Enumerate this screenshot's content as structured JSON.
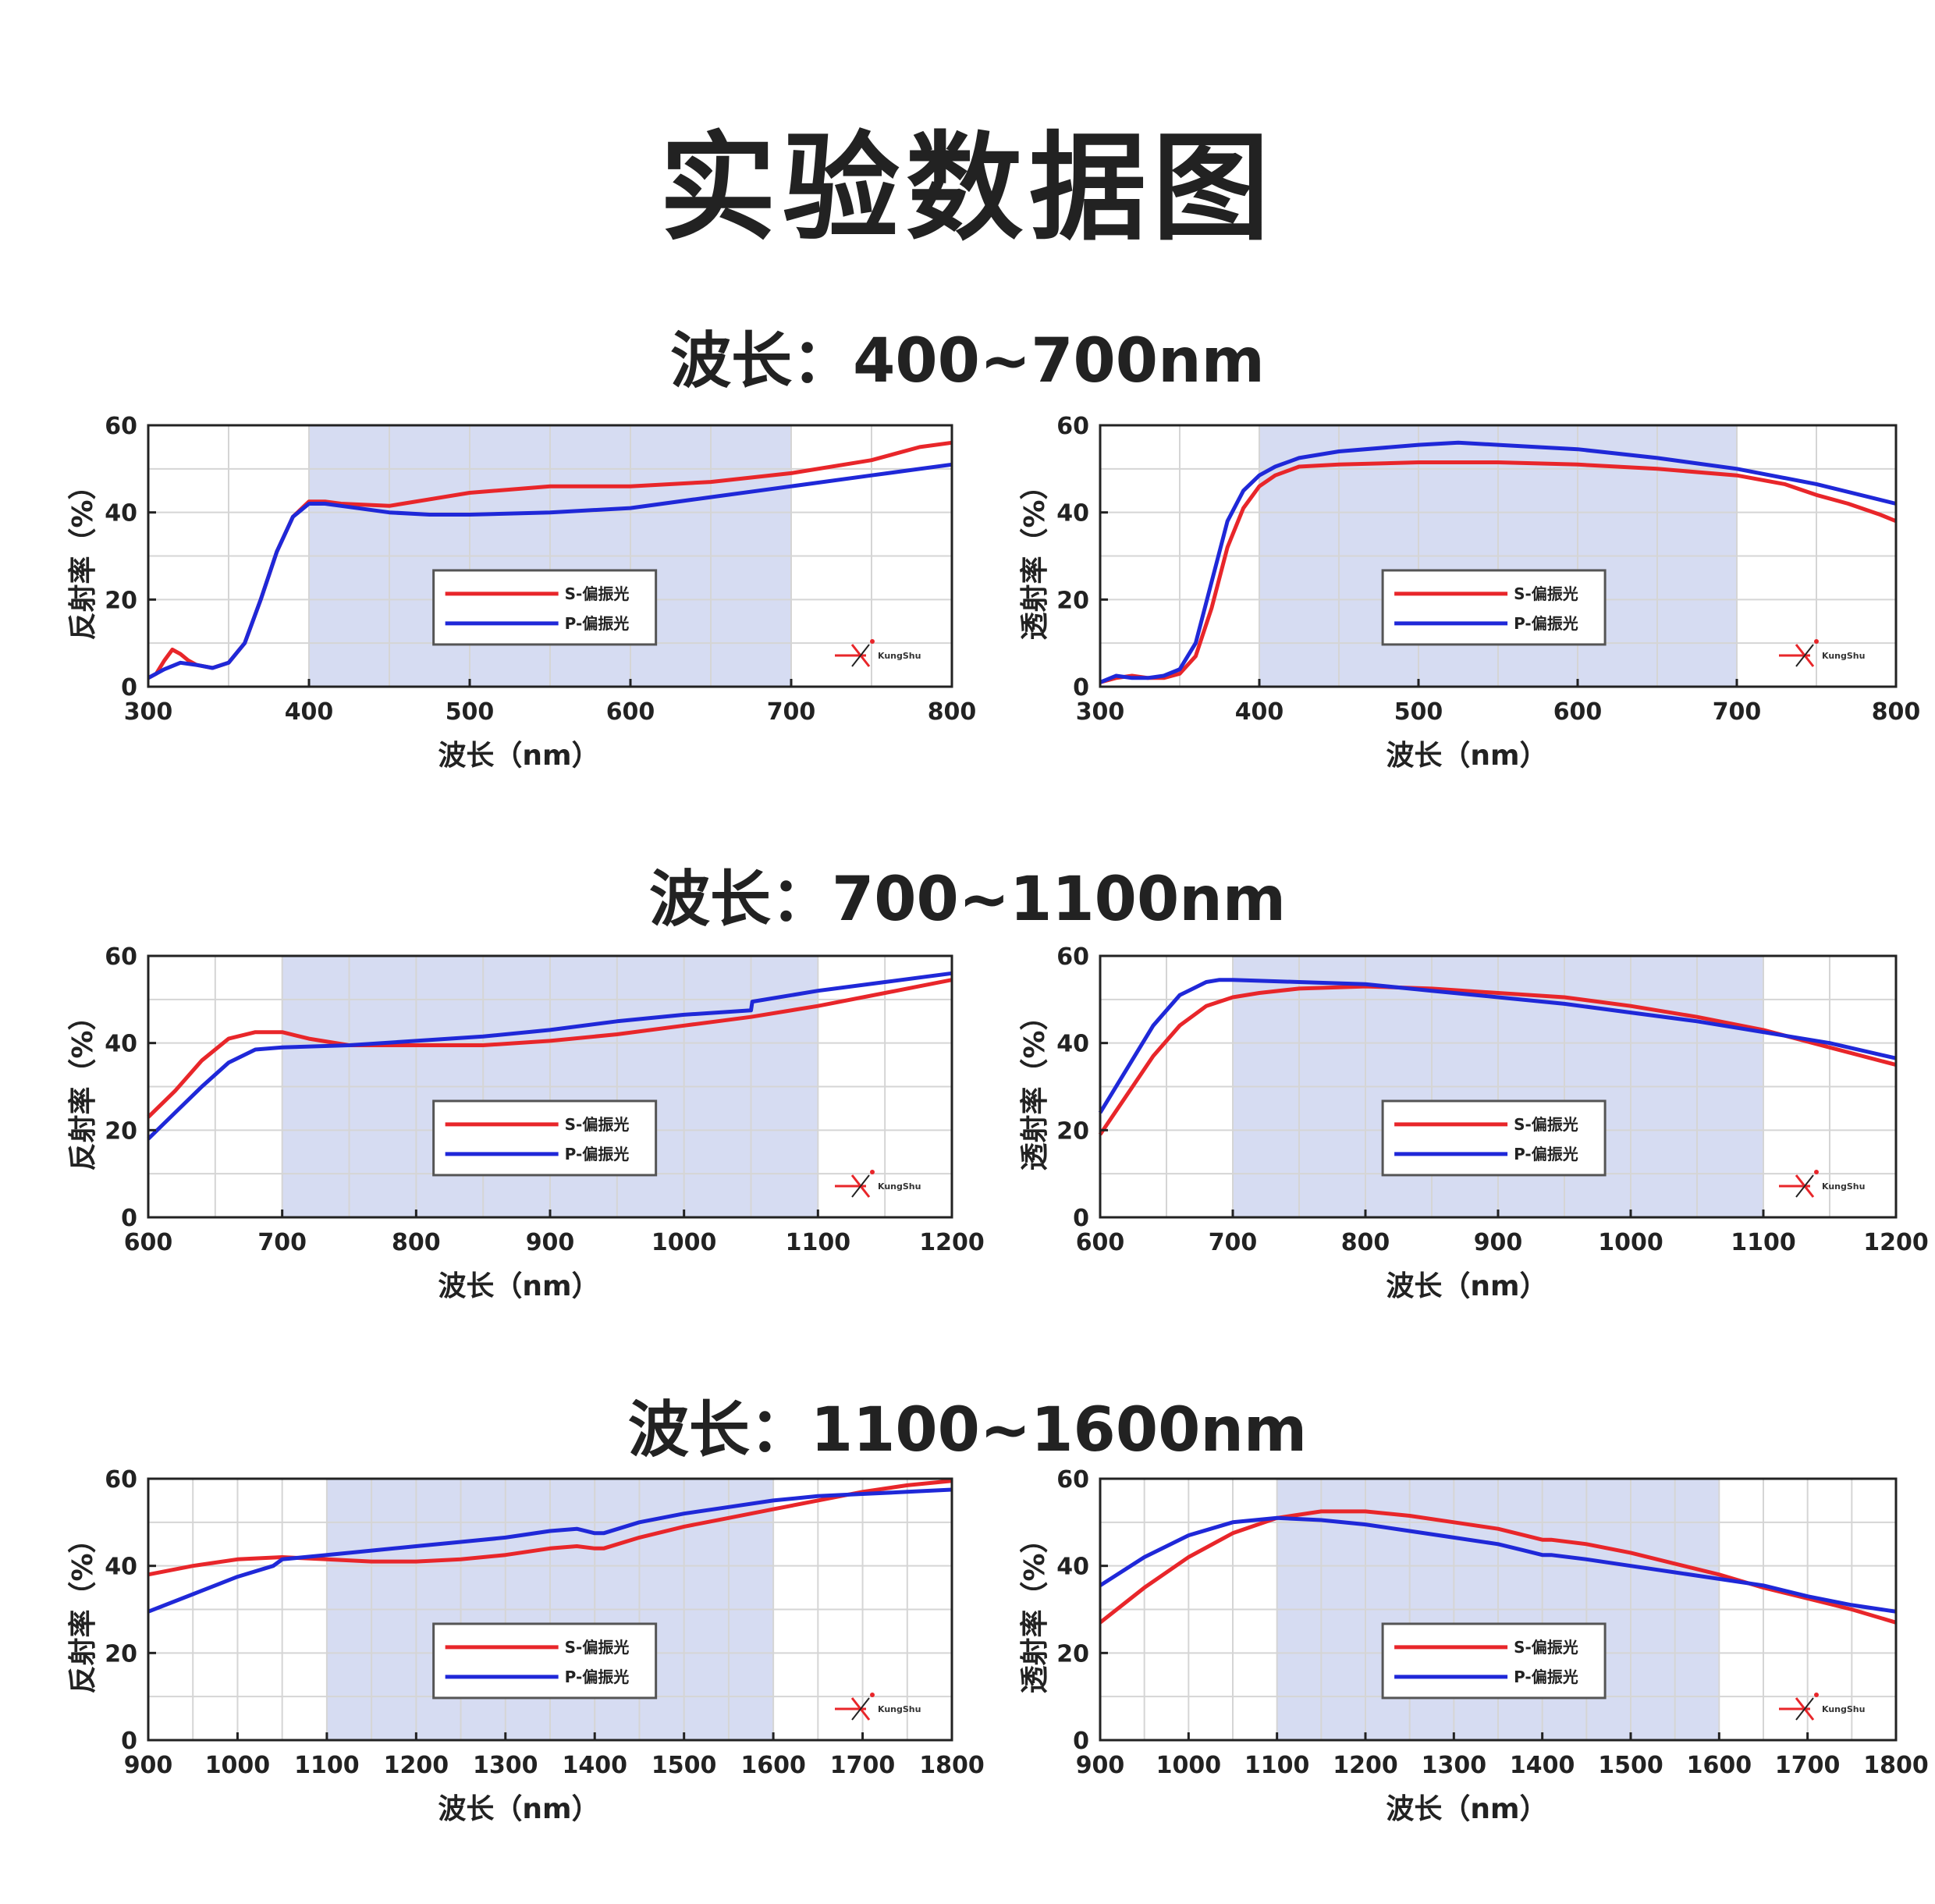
{
  "title": "实验数据图",
  "sections": [
    {
      "title": "波长：400~700nm"
    },
    {
      "title": "波长：700~1100nm"
    },
    {
      "title": "波长：1100~1600nm"
    }
  ],
  "colors": {
    "s": "#e8262a",
    "p": "#1f28d8",
    "band": "#d6dcf2",
    "grid": "#d5d5d5"
  },
  "legend": {
    "s": "S-偏振光",
    "p": "P-偏振光"
  },
  "logo": {
    "text": "KungShu",
    "icon": "kungshu-laser-logo-icon"
  },
  "chart_data": [
    {
      "type": "line",
      "section": 0,
      "side": "left",
      "ylabel": "反射率（%）",
      "xlabel": "波长（nm）",
      "xlim": [
        300,
        800
      ],
      "ylim": [
        0,
        60
      ],
      "xticks": [
        "300",
        "400",
        "500",
        "600",
        "700",
        "800"
      ],
      "yticks": [
        "0",
        "20",
        "40",
        "60"
      ],
      "band": [
        400,
        700
      ],
      "series": [
        {
          "name": "S-偏振光",
          "color": "#e8262a",
          "x": [
            300,
            305,
            310,
            315,
            320,
            325,
            330,
            340,
            350,
            360,
            370,
            380,
            390,
            400,
            410,
            420,
            450,
            500,
            550,
            600,
            650,
            700,
            750,
            780,
            800
          ],
          "y": [
            2,
            3,
            6,
            8.5,
            7.5,
            6,
            5,
            4.3,
            5.5,
            10,
            20,
            31,
            39,
            42.5,
            42.5,
            42,
            41.5,
            44.5,
            46,
            46,
            47,
            49,
            52,
            55,
            56
          ]
        },
        {
          "name": "P-偏振光",
          "color": "#1f28d8",
          "x": [
            300,
            310,
            320,
            330,
            340,
            350,
            360,
            370,
            380,
            390,
            400,
            410,
            420,
            450,
            475,
            500,
            550,
            600,
            650,
            700,
            750,
            800
          ],
          "y": [
            2,
            4,
            5.5,
            5,
            4.3,
            5.5,
            10,
            20,
            31,
            39,
            42,
            42,
            41.5,
            40,
            39.5,
            39.5,
            40,
            41,
            43.5,
            46,
            48.5,
            51
          ]
        }
      ]
    },
    {
      "type": "line",
      "section": 0,
      "side": "right",
      "ylabel": "透射率（%）",
      "xlabel": "波长（nm）",
      "xlim": [
        300,
        800
      ],
      "ylim": [
        0,
        60
      ],
      "xticks": [
        "300",
        "400",
        "500",
        "600",
        "700",
        "800"
      ],
      "yticks": [
        "0",
        "20",
        "40",
        "60"
      ],
      "band": [
        400,
        700
      ],
      "series": [
        {
          "name": "S-偏振光",
          "color": "#e8262a",
          "x": [
            300,
            310,
            320,
            330,
            340,
            350,
            360,
            370,
            380,
            390,
            400,
            410,
            425,
            450,
            500,
            550,
            600,
            650,
            700,
            730,
            750,
            770,
            790,
            800
          ],
          "y": [
            1,
            2,
            2.5,
            2,
            2,
            3,
            7,
            18,
            32,
            41,
            46,
            48.5,
            50.5,
            51,
            51.5,
            51.5,
            51,
            50,
            48.5,
            46.5,
            44,
            42,
            39.5,
            38
          ]
        },
        {
          "name": "P-偏振光",
          "color": "#1f28d8",
          "x": [
            300,
            310,
            320,
            330,
            340,
            350,
            360,
            370,
            380,
            390,
            400,
            410,
            425,
            450,
            500,
            525,
            550,
            600,
            650,
            700,
            750,
            800
          ],
          "y": [
            1,
            2.5,
            2,
            2,
            2.5,
            4,
            10,
            24,
            38,
            45,
            48.5,
            50.5,
            52.5,
            54,
            55.5,
            56,
            55.5,
            54.5,
            52.5,
            50,
            46.5,
            42
          ]
        }
      ]
    },
    {
      "type": "line",
      "section": 1,
      "side": "left",
      "ylabel": "反射率（%）",
      "xlabel": "波长（nm）",
      "xlim": [
        600,
        1200
      ],
      "ylim": [
        0,
        60
      ],
      "xticks": [
        "600",
        "700",
        "800",
        "900",
        "1000",
        "1100",
        "1200"
      ],
      "yticks": [
        "0",
        "20",
        "40",
        "60"
      ],
      "band": [
        700,
        1100
      ],
      "series": [
        {
          "name": "S-偏振光",
          "color": "#e8262a",
          "x": [
            600,
            620,
            640,
            660,
            680,
            700,
            720,
            750,
            800,
            850,
            900,
            950,
            1000,
            1050,
            1100,
            1150,
            1200
          ],
          "y": [
            23,
            29,
            36,
            41,
            42.5,
            42.5,
            41,
            39.5,
            39.5,
            39.5,
            40.5,
            42,
            44,
            46,
            48.5,
            51.5,
            54.5
          ]
        },
        {
          "name": "P-偏振光",
          "color": "#1f28d8",
          "x": [
            600,
            620,
            640,
            660,
            680,
            700,
            750,
            800,
            850,
            900,
            950,
            1000,
            1050,
            1051,
            1100,
            1150,
            1200
          ],
          "y": [
            18,
            24,
            30,
            35.5,
            38.5,
            39,
            39.5,
            40.5,
            41.5,
            43,
            45,
            46.5,
            47.5,
            49.5,
            52,
            54,
            56
          ]
        }
      ]
    },
    {
      "type": "line",
      "section": 1,
      "side": "right",
      "ylabel": "透射率（%）",
      "xlabel": "波长（nm）",
      "xlim": [
        600,
        1200
      ],
      "ylim": [
        0,
        60
      ],
      "xticks": [
        "600",
        "700",
        "800",
        "900",
        "1000",
        "1100",
        "1200"
      ],
      "yticks": [
        "0",
        "20",
        "40",
        "60"
      ],
      "band": [
        700,
        1100
      ],
      "series": [
        {
          "name": "S-偏振光",
          "color": "#e8262a",
          "x": [
            600,
            620,
            640,
            660,
            680,
            700,
            720,
            750,
            800,
            850,
            900,
            950,
            1000,
            1050,
            1100,
            1150,
            1200
          ],
          "y": [
            19,
            28,
            37,
            44,
            48.5,
            50.5,
            51.5,
            52.5,
            53,
            52.5,
            51.5,
            50.5,
            48.5,
            46,
            43,
            39,
            35
          ]
        },
        {
          "name": "P-偏振光",
          "color": "#1f28d8",
          "x": [
            600,
            620,
            640,
            660,
            680,
            690,
            700,
            750,
            800,
            850,
            900,
            950,
            1000,
            1050,
            1100,
            1150,
            1200
          ],
          "y": [
            24,
            34,
            44,
            51,
            54,
            54.5,
            54.5,
            54,
            53.5,
            52,
            50.5,
            49,
            47,
            45,
            42.5,
            40,
            36.5
          ]
        }
      ]
    },
    {
      "type": "line",
      "section": 2,
      "side": "left",
      "ylabel": "反射率（%）",
      "xlabel": "波长（nm）",
      "xlim": [
        900,
        1800
      ],
      "ylim": [
        0,
        60
      ],
      "xticks": [
        "900",
        "1000",
        "1100",
        "1200",
        "1300",
        "1400",
        "1500",
        "1600",
        "1700",
        "1800"
      ],
      "yticks": [
        "0",
        "20",
        "40",
        "60"
      ],
      "band": [
        1100,
        1600
      ],
      "series": [
        {
          "name": "S-偏振光",
          "color": "#e8262a",
          "x": [
            900,
            950,
            1000,
            1050,
            1100,
            1150,
            1200,
            1250,
            1300,
            1350,
            1380,
            1400,
            1410,
            1450,
            1500,
            1550,
            1600,
            1650,
            1700,
            1750,
            1800
          ],
          "y": [
            38,
            40,
            41.5,
            42,
            41.5,
            41,
            41,
            41.5,
            42.5,
            44,
            44.5,
            44,
            44,
            46.5,
            49,
            51,
            53,
            55,
            57,
            58.5,
            59.5
          ]
        },
        {
          "name": "P-偏振光",
          "color": "#1f28d8",
          "x": [
            900,
            950,
            1000,
            1040,
            1050,
            1100,
            1150,
            1200,
            1250,
            1300,
            1350,
            1380,
            1400,
            1410,
            1450,
            1500,
            1550,
            1600,
            1650,
            1700,
            1750,
            1800
          ],
          "y": [
            29.5,
            33.5,
            37.5,
            40,
            41.5,
            42.5,
            43.5,
            44.5,
            45.5,
            46.5,
            48,
            48.5,
            47.5,
            47.5,
            50,
            52,
            53.5,
            55,
            56,
            56.5,
            57,
            57.5
          ]
        }
      ]
    },
    {
      "type": "line",
      "section": 2,
      "side": "right",
      "ylabel": "透射率（%）",
      "xlabel": "波长（nm）",
      "xlim": [
        900,
        1800
      ],
      "ylim": [
        0,
        60
      ],
      "xticks": [
        "900",
        "1000",
        "1100",
        "1200",
        "1300",
        "1400",
        "1500",
        "1600",
        "1700",
        "1800"
      ],
      "yticks": [
        "0",
        "20",
        "40",
        "60"
      ],
      "band": [
        1100,
        1600
      ],
      "series": [
        {
          "name": "S-偏振光",
          "color": "#e8262a",
          "x": [
            900,
            950,
            1000,
            1050,
            1100,
            1150,
            1200,
            1250,
            1300,
            1350,
            1380,
            1400,
            1410,
            1450,
            1500,
            1550,
            1600,
            1650,
            1700,
            1750,
            1800
          ],
          "y": [
            27,
            35,
            42,
            47.5,
            51,
            52.5,
            52.5,
            51.5,
            50,
            48.5,
            47,
            46,
            46,
            45,
            43,
            40.5,
            38,
            35,
            32.5,
            30,
            27
          ]
        },
        {
          "name": "P-偏振光",
          "color": "#1f28d8",
          "x": [
            900,
            950,
            1000,
            1050,
            1100,
            1150,
            1200,
            1250,
            1300,
            1350,
            1380,
            1400,
            1410,
            1450,
            1500,
            1550,
            1600,
            1650,
            1700,
            1750,
            1800
          ],
          "y": [
            35.5,
            42,
            47,
            50,
            51,
            50.5,
            49.5,
            48,
            46.5,
            45,
            43.5,
            42.5,
            42.5,
            41.5,
            40,
            38.5,
            37,
            35.5,
            33,
            31,
            29.5
          ]
        }
      ]
    }
  ]
}
